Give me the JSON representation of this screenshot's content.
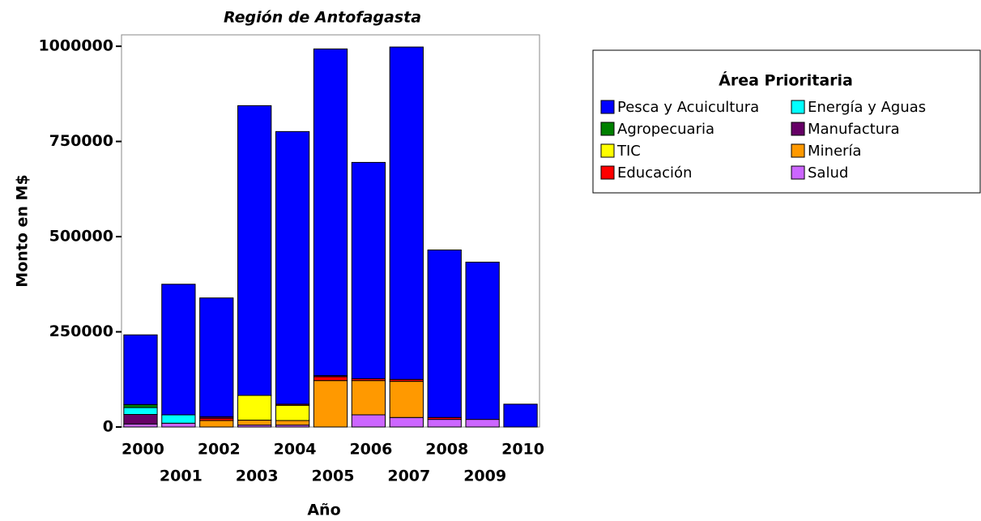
{
  "chart_data": {
    "type": "stacked-bar",
    "title": "Región de Antofagasta",
    "x_label": "Año",
    "y_label": "Monto en M$",
    "legend_title": "Área Prioritaria",
    "categories": [
      "2000",
      "2001",
      "2002",
      "2003",
      "2004",
      "2005",
      "2006",
      "2007",
      "2008",
      "2009",
      "2010"
    ],
    "series": [
      {
        "name": "Pesca y Acuicultura",
        "color": "#0000ff",
        "values": [
          183000,
          343000,
          312000,
          761000,
          716000,
          858000,
          568000,
          873000,
          440000,
          413000,
          60000
        ]
      },
      {
        "name": "Energía y Aguas",
        "color": "#00ffff",
        "values": [
          18000,
          22000,
          0,
          0,
          0,
          0,
          0,
          0,
          0,
          0,
          0
        ]
      },
      {
        "name": "Agropecuaria",
        "color": "#008000",
        "values": [
          8000,
          0,
          0,
          0,
          0,
          0,
          0,
          0,
          0,
          0,
          0
        ]
      },
      {
        "name": "Manufactura",
        "color": "#660066",
        "values": [
          25000,
          0,
          4000,
          0,
          0,
          3000,
          0,
          0,
          0,
          0,
          0
        ]
      },
      {
        "name": "TIC",
        "color": "#ffff00",
        "values": [
          0,
          0,
          0,
          65000,
          40000,
          0,
          0,
          0,
          0,
          0,
          0
        ]
      },
      {
        "name": "Minería",
        "color": "#ff9900",
        "values": [
          0,
          0,
          17000,
          13000,
          12000,
          122000,
          90000,
          95000,
          0,
          0,
          0
        ]
      },
      {
        "name": "Educación",
        "color": "#ff0000",
        "values": [
          0,
          0,
          6000,
          0,
          3000,
          10000,
          5000,
          5000,
          5000,
          0,
          0
        ]
      },
      {
        "name": "Salud",
        "color": "#cc66ff",
        "values": [
          8000,
          10000,
          0,
          5000,
          5000,
          0,
          32000,
          25000,
          20000,
          20000,
          0
        ]
      }
    ],
    "ylim": [
      0,
      1030000
    ],
    "yticks": [
      0,
      250000,
      500000,
      750000,
      1000000
    ]
  }
}
